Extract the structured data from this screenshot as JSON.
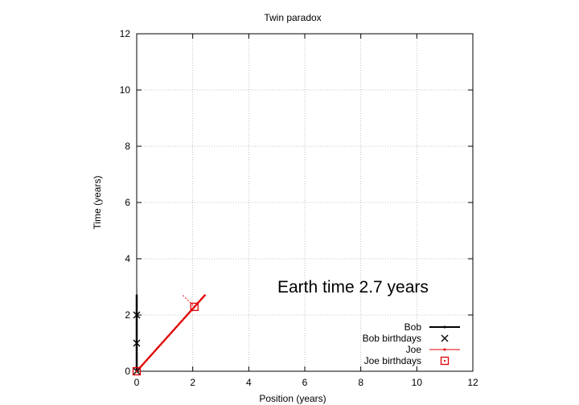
{
  "chart_data": {
    "type": "line",
    "title": "Twin paradox",
    "xlabel": "Position (years)",
    "ylabel": "Time (years)",
    "xlim": [
      0,
      12
    ],
    "ylim": [
      0,
      12
    ],
    "xticks": [
      0,
      2,
      4,
      6,
      8,
      10,
      12
    ],
    "yticks": [
      0,
      2,
      4,
      6,
      8,
      10,
      12
    ],
    "grid": true,
    "legend_position": "bottom-right",
    "annotation": "Earth time  2.7 years",
    "series": [
      {
        "name": "Bob",
        "style": "line-points",
        "color": "#000000",
        "x": [
          0,
          0
        ],
        "y": [
          0,
          2.7
        ]
      },
      {
        "name": "Bob birthdays",
        "style": "x-markers",
        "color": "#000000",
        "x": [
          0,
          0,
          0
        ],
        "y": [
          0,
          1,
          2
        ]
      },
      {
        "name": "Joe",
        "style": "line-points",
        "color": "#e00000",
        "x": [
          0,
          2.43
        ],
        "y": [
          0,
          2.7
        ]
      },
      {
        "name": "Joe birthdays",
        "style": "square-markers",
        "color": "#e00000",
        "x": [
          0,
          2.06
        ],
        "y": [
          0,
          2.29
        ]
      }
    ],
    "dotted_segment": {
      "color": "#e00000",
      "x": [
        1.65,
        2.06
      ],
      "y": [
        2.7,
        2.29
      ]
    }
  }
}
